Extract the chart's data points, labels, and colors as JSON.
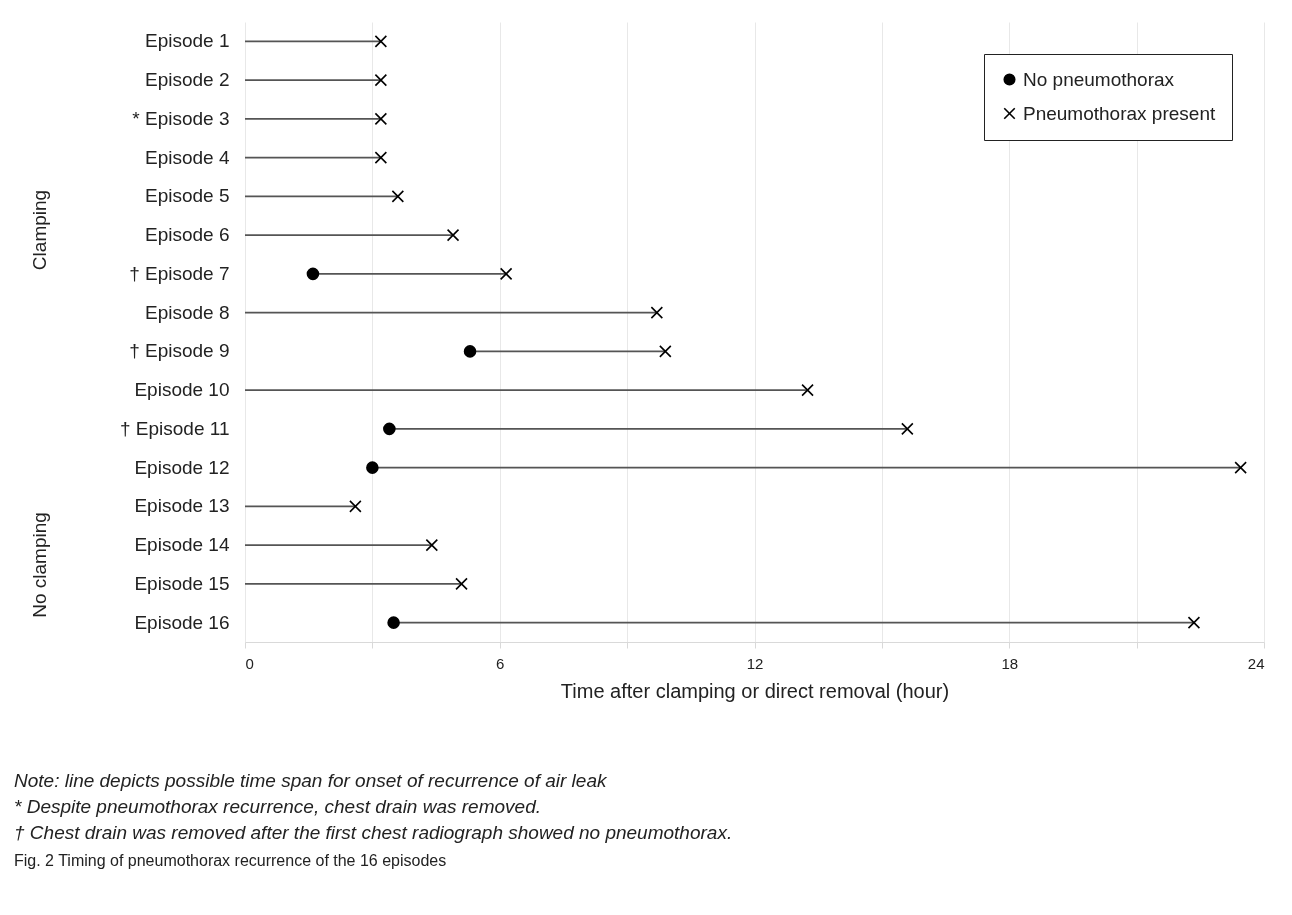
{
  "chart_data": {
    "type": "bar",
    "orientation": "horizontal",
    "title": "Fig. 2 Timing of pneumothorax recurrence of the 16 episodes",
    "xlabel": "Time after clamping or direct removal (hour)",
    "categories": [
      "Episode 1",
      "Episode 2",
      "* Episode 3",
      "Episode 4",
      "Episode 5",
      "Episode 6",
      "† Episode 7",
      "Episode 8",
      "† Episode 9",
      "Episode 10",
      "† Episode 11",
      "Episode 12",
      "Episode 13",
      "Episode 14",
      "Episode 15",
      "Episode 16"
    ],
    "series": [
      {
        "color": "#555555",
        "base": [
          0,
          0,
          0,
          0,
          0,
          0,
          1.6,
          0,
          5.3,
          0,
          3.4,
          3.0,
          0,
          0,
          0,
          3.5
        ],
        "values": [
          3.2,
          3.2,
          3.2,
          3.2,
          3.6,
          4.9,
          4.55,
          9.7,
          4.6,
          13.25,
          12.2,
          20.45,
          2.6,
          4.4,
          5.1,
          18.85
        ]
      },
      {
        "type": "scatter",
        "name": "No pneumothorax",
        "color": "#000000",
        "marker": "circle",
        "values": [
          null,
          null,
          null,
          null,
          null,
          null,
          1.6,
          null,
          5.3,
          null,
          3.4,
          3.0,
          null,
          null,
          null,
          3.5
        ]
      },
      {
        "type": "scatter",
        "name": "Pneumothorax present",
        "color": "#000000",
        "marker": "cross",
        "values": [
          3.2,
          3.2,
          3.2,
          3.2,
          3.6,
          4.9,
          6.15,
          9.7,
          9.9,
          13.25,
          15.6,
          23.45,
          2.6,
          4.4,
          5.1,
          22.35
        ]
      }
    ],
    "xlim": [
      0,
      24
    ],
    "xticks": [
      0,
      {
        "value": 3,
        "label": null
      },
      6,
      {
        "value": 9,
        "label": null
      },
      12,
      {
        "value": 15,
        "label": null
      },
      18,
      {
        "value": 21,
        "label": null
      },
      24
    ],
    "grid": "x",
    "legend": "top right",
    "annotations": [
      "Clamping",
      "No clamping",
      "Note: line depicts possible time span for onset of recurrence of air leak",
      "* Despite pneumothorax recurrence, chest drain was removed.",
      "† Chest drain was removed after the first chest radiograph showed no pneumothorax."
    ]
  }
}
